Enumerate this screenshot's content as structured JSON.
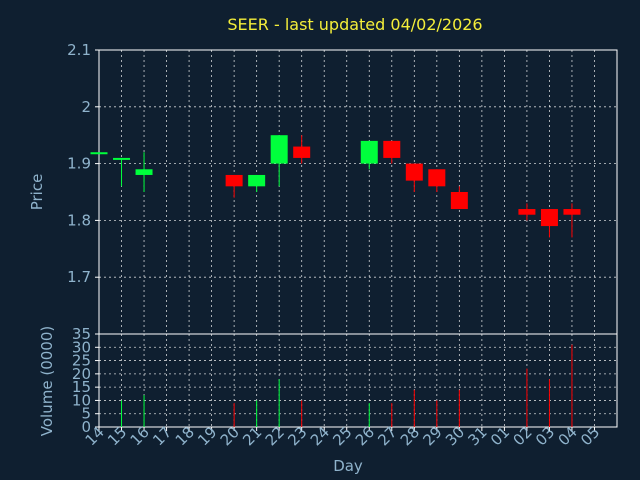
{
  "chart_data": {
    "type": "candlestick",
    "title": "SEER - last updated 04/02/2026",
    "xlabel": "Day",
    "price": {
      "ylabel": "Price",
      "ylim": [
        1.6,
        2.1
      ],
      "yticks": [
        "2.1",
        "2",
        "1.9",
        "1.8",
        "1.7"
      ],
      "ytick_values": [
        2.1,
        2.0,
        1.9,
        1.8,
        1.7
      ]
    },
    "volume": {
      "ylabel": "Volume (0000)",
      "ylim": [
        0,
        35
      ],
      "yticks": [
        "35",
        "30",
        "25",
        "20",
        "15",
        "10",
        "5",
        "0"
      ],
      "ytick_values": [
        35,
        30,
        25,
        20,
        15,
        10,
        5,
        0
      ]
    },
    "x_labels": [
      "14",
      "15",
      "16",
      "17",
      "18",
      "19",
      "20",
      "21",
      "22",
      "23",
      "24",
      "25",
      "26",
      "27",
      "28",
      "29",
      "30",
      "31",
      "01",
      "02",
      "03",
      "04",
      "05"
    ],
    "candles": [
      {
        "x": 0,
        "open": 1.92,
        "close": 1.92,
        "high": 1.92,
        "low": 1.92,
        "volume": 0,
        "dir": "up"
      },
      {
        "x": 1,
        "open": 1.91,
        "close": 1.91,
        "high": 1.91,
        "low": 1.86,
        "volume": 10,
        "dir": "up"
      },
      {
        "x": 2,
        "open": 1.88,
        "close": 1.89,
        "high": 1.92,
        "low": 1.85,
        "volume": 12,
        "dir": "up"
      },
      {
        "x": 6,
        "open": 1.88,
        "close": 1.86,
        "high": 1.88,
        "low": 1.84,
        "volume": 9,
        "dir": "down"
      },
      {
        "x": 7,
        "open": 1.86,
        "close": 1.88,
        "high": 1.88,
        "low": 1.85,
        "volume": 10,
        "dir": "up"
      },
      {
        "x": 8,
        "open": 1.9,
        "close": 1.95,
        "high": 1.95,
        "low": 1.86,
        "volume": 18,
        "dir": "up"
      },
      {
        "x": 9,
        "open": 1.93,
        "close": 1.91,
        "high": 1.95,
        "low": 1.9,
        "volume": 10,
        "dir": "down"
      },
      {
        "x": 12,
        "open": 1.9,
        "close": 1.94,
        "high": 1.94,
        "low": 1.89,
        "volume": 9,
        "dir": "up"
      },
      {
        "x": 13,
        "open": 1.94,
        "close": 1.91,
        "high": 1.94,
        "low": 1.9,
        "volume": 9,
        "dir": "down"
      },
      {
        "x": 14,
        "open": 1.9,
        "close": 1.87,
        "high": 1.9,
        "low": 1.85,
        "volume": 14,
        "dir": "down"
      },
      {
        "x": 15,
        "open": 1.89,
        "close": 1.86,
        "high": 1.89,
        "low": 1.85,
        "volume": 10,
        "dir": "down"
      },
      {
        "x": 16,
        "open": 1.85,
        "close": 1.82,
        "high": 1.86,
        "low": 1.82,
        "volume": 14,
        "dir": "down"
      },
      {
        "x": 19,
        "open": 1.82,
        "close": 1.81,
        "high": 1.83,
        "low": 1.8,
        "volume": 22,
        "dir": "down"
      },
      {
        "x": 20,
        "open": 1.82,
        "close": 1.79,
        "high": 1.82,
        "low": 1.77,
        "volume": 18,
        "dir": "down"
      },
      {
        "x": 21,
        "open": 1.82,
        "close": 1.81,
        "high": 1.83,
        "low": 1.77,
        "volume": 31,
        "dir": "down"
      }
    ],
    "grid": true,
    "colors": {
      "background": "#0f1f30",
      "up": "#00ff3c",
      "down": "#ff0000",
      "grid": "#ffffff",
      "axis": "#ffffff",
      "text": "#8fb3cc",
      "title": "#f4ee3a"
    }
  }
}
